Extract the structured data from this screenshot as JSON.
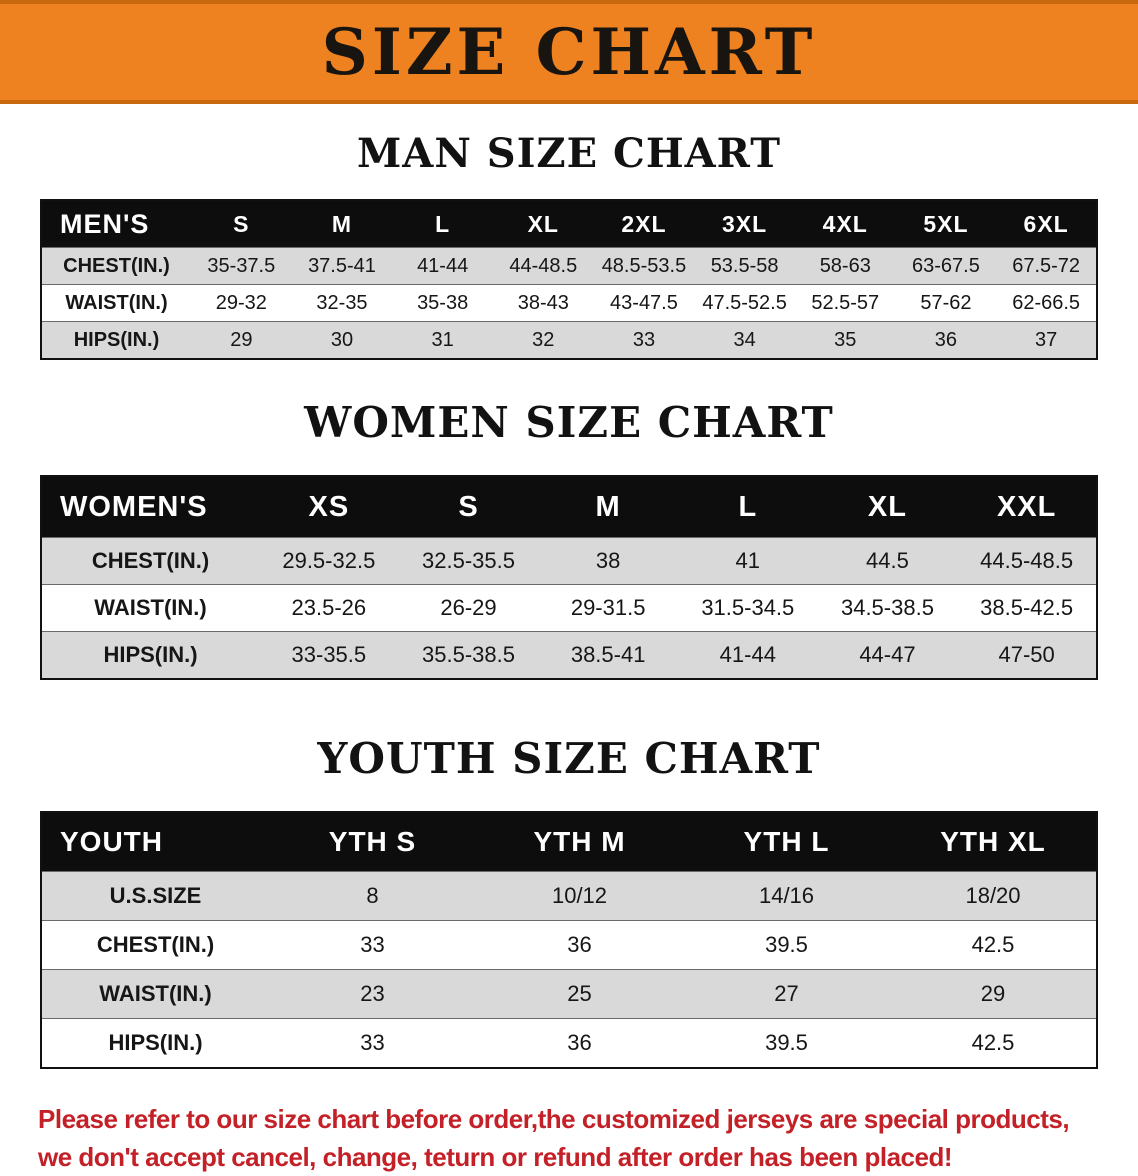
{
  "banner": {
    "title": "SIZE CHART",
    "bg_color": "#EE8120",
    "border_color": "#C9690F"
  },
  "chart_data": [
    {
      "type": "table",
      "title": "MAN SIZE CHART",
      "columns": [
        "MEN'S",
        "S",
        "M",
        "L",
        "XL",
        "2XL",
        "3XL",
        "4XL",
        "5XL",
        "6XL"
      ],
      "rows": [
        [
          "CHEST(IN.)",
          "35-37.5",
          "37.5-41",
          "41-44",
          "44-48.5",
          "48.5-53.5",
          "53.5-58",
          "58-63",
          "63-67.5",
          "67.5-72"
        ],
        [
          "WAIST(IN.)",
          "29-32",
          "32-35",
          "35-38",
          "38-43",
          "43-47.5",
          "47.5-52.5",
          "52.5-57",
          "57-62",
          "62-66.5"
        ],
        [
          "HIPS(IN.)",
          "29",
          "30",
          "31",
          "32",
          "33",
          "34",
          "35",
          "36",
          "37"
        ]
      ]
    },
    {
      "type": "table",
      "title": "WOMEN SIZE CHART",
      "columns": [
        "WOMEN'S",
        "XS",
        "S",
        "M",
        "L",
        "XL",
        "XXL"
      ],
      "rows": [
        [
          "CHEST(IN.)",
          "29.5-32.5",
          "32.5-35.5",
          "38",
          "41",
          "44.5",
          "44.5-48.5"
        ],
        [
          "WAIST(IN.)",
          "23.5-26",
          "26-29",
          "29-31.5",
          "31.5-34.5",
          "34.5-38.5",
          "38.5-42.5"
        ],
        [
          "HIPS(IN.)",
          "33-35.5",
          "35.5-38.5",
          "38.5-41",
          "41-44",
          "44-47",
          "47-50"
        ]
      ]
    },
    {
      "type": "table",
      "title": "YOUTH SIZE CHART",
      "columns": [
        "YOUTH",
        "YTH S",
        "YTH M",
        "YTH L",
        "YTH XL"
      ],
      "rows": [
        [
          "U.S.SIZE",
          "8",
          "10/12",
          "14/16",
          "18/20"
        ],
        [
          "CHEST(IN.)",
          "33",
          "36",
          "39.5",
          "42.5"
        ],
        [
          "WAIST(IN.)",
          "23",
          "25",
          "27",
          "29"
        ],
        [
          "HIPS(IN.)",
          "33",
          "36",
          "39.5",
          "42.5"
        ]
      ]
    }
  ],
  "disclaimer": {
    "line1": "Please refer to our size chart before order,the customized jerseys are special products,",
    "line2": "we don't accept cancel, change, teturn or refund after order has been placed!",
    "color": "#C32127"
  }
}
